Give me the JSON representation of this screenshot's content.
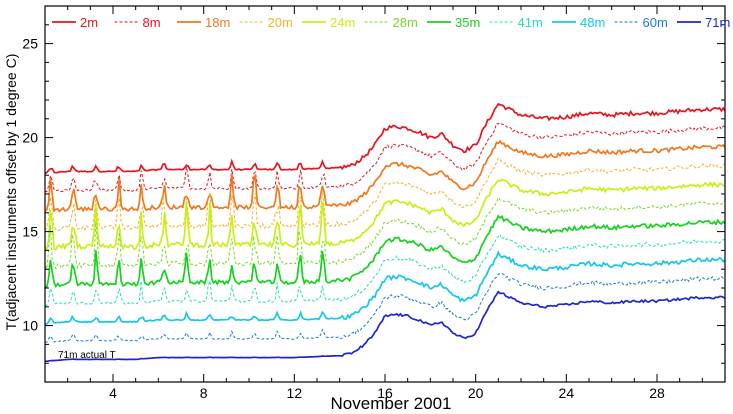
{
  "chart_data": {
    "type": "line",
    "xlabel": "November 2001",
    "ylabel": "T(adjacent instruments offset by 1 degree C)",
    "xlim": [
      1,
      31
    ],
    "ylim": [
      7,
      27
    ],
    "x_ticks": [
      4,
      8,
      12,
      16,
      20,
      24,
      28
    ],
    "y_ticks": [
      10,
      15,
      20,
      25
    ],
    "legend_placement": "top",
    "annotation": "71m actual T",
    "grid": false,
    "series": [
      {
        "name": "2m",
        "color": "#e8141e",
        "dashed": false,
        "offset": 10
      },
      {
        "name": "8m",
        "color": "#e8141e",
        "dashed": true,
        "offset": 9
      },
      {
        "name": "18m",
        "color": "#f0781e",
        "dashed": false,
        "offset": 8
      },
      {
        "name": "20m",
        "color": "#f5b428",
        "dashed": true,
        "offset": 7
      },
      {
        "name": "24m",
        "color": "#c8f014",
        "dashed": false,
        "offset": 6
      },
      {
        "name": "28m",
        "color": "#78dc28",
        "dashed": true,
        "offset": 5
      },
      {
        "name": "35m",
        "color": "#14d21e",
        "dashed": false,
        "offset": 4
      },
      {
        "name": "41m",
        "color": "#28dcbe",
        "dashed": true,
        "offset": 3
      },
      {
        "name": "48m",
        "color": "#14c8e6",
        "dashed": false,
        "offset": 2
      },
      {
        "name": "60m",
        "color": "#1e78dc",
        "dashed": true,
        "offset": 1
      },
      {
        "name": "71m",
        "color": "#1e28c8",
        "dashed": false,
        "offset": 0
      }
    ],
    "base_x": [
      1,
      2,
      3,
      4,
      5,
      6,
      7,
      8,
      9,
      10,
      11,
      12,
      13,
      14,
      14.5,
      15,
      15.5,
      16,
      16.5,
      17,
      17.5,
      18,
      18.5,
      19,
      19.5,
      20,
      20.5,
      21,
      22,
      23,
      24,
      25,
      26,
      27,
      28,
      29,
      30,
      31
    ],
    "base_y": [
      8.1,
      8.2,
      8.2,
      8.2,
      8.2,
      8.3,
      8.3,
      8.3,
      8.3,
      8.3,
      8.3,
      8.3,
      8.35,
      8.4,
      8.5,
      8.9,
      9.5,
      10.5,
      10.6,
      10.5,
      10.3,
      10.0,
      10.2,
      9.6,
      9.3,
      9.6,
      10.8,
      11.8,
      11.2,
      11.0,
      11.1,
      11.3,
      11.2,
      11.3,
      11.3,
      11.4,
      11.5,
      11.5
    ]
  }
}
